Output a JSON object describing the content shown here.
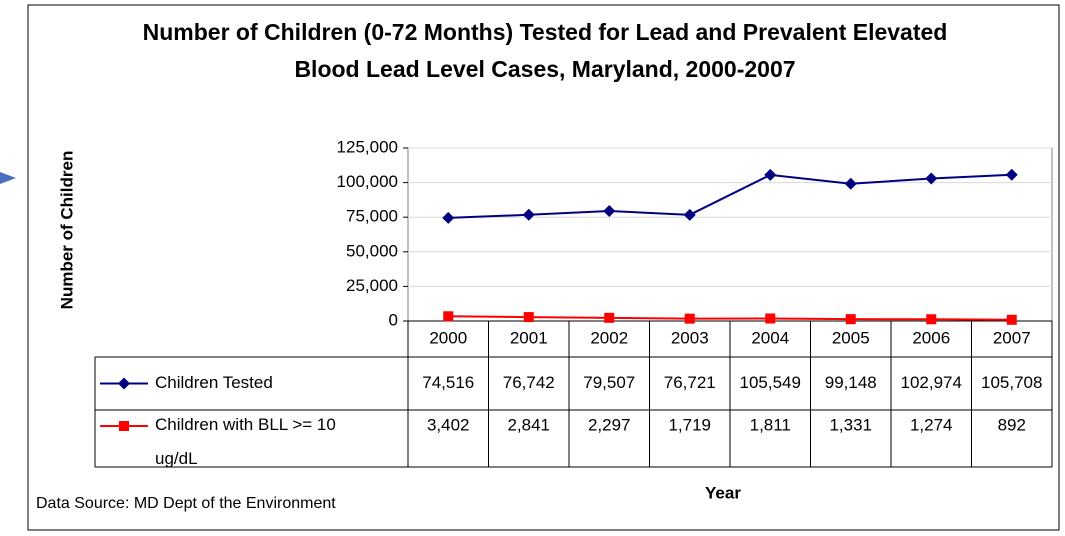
{
  "chart_data": {
    "type": "line",
    "title": "Number of Children (0-72 Months) Tested for Lead and Prevalent Elevated Blood Lead Level Cases, Maryland, 2000-2007",
    "y_label": "Number of Children",
    "x_label": "Year",
    "source": "Data Source: MD Dept of the Environment",
    "categories": [
      "2000",
      "2001",
      "2002",
      "2003",
      "2004",
      "2005",
      "2006",
      "2007"
    ],
    "series": [
      {
        "name": "Children Tested",
        "color": "#000080",
        "marker": "diamond",
        "values": [
          74516,
          76742,
          79507,
          76721,
          105549,
          99148,
          102974,
          105708
        ],
        "value_labels": [
          "74,516",
          "76,742",
          "79,507",
          "76,721",
          "105,549",
          "99,148",
          "102,974",
          "105,708"
        ]
      },
      {
        "name": "Children with BLL >= 10 ug/dL",
        "color": "#ff0000",
        "marker": "square",
        "values": [
          3402,
          2841,
          2297,
          1719,
          1811,
          1331,
          1274,
          892
        ],
        "value_labels": [
          "3,402",
          "2,841",
          "2,297",
          "1,719",
          "1,811",
          "1,331",
          "1,274",
          "892"
        ]
      }
    ],
    "ylim": [
      0,
      125000
    ],
    "yticks": [
      0,
      {
        "value": 25000,
        "label": "25,000"
      },
      {
        "value": 50000,
        "label": "50,000"
      },
      {
        "value": 75000,
        "label": "75,000"
      },
      {
        "value": 100000,
        "label": "100,000"
      },
      {
        "value": 125000,
        "label": "125,000"
      }
    ],
    "grid": true
  }
}
